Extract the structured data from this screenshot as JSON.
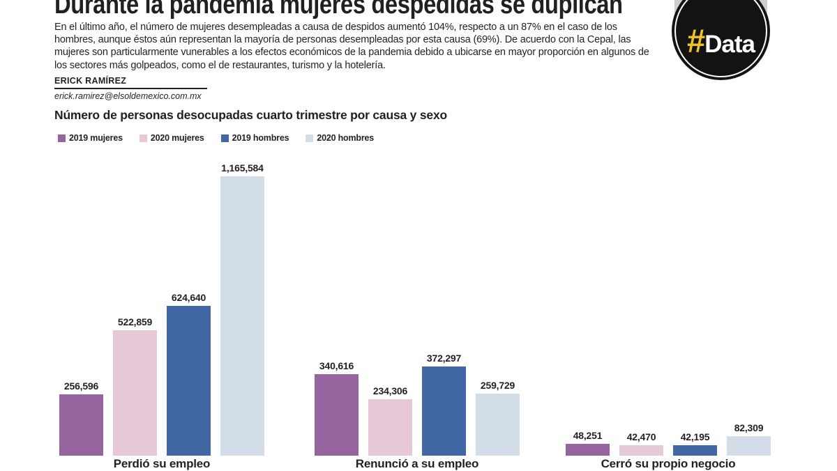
{
  "masthead": {
    "title": "Durante la pandemia mujeres despedidas se duplican",
    "intro": "En el último año, el número de mujeres desempleadas a causa de despidos aumentó 104%, respecto a un 87% en el caso de los hombres, aunque éstos aún representan la mayoría de personas desempleadas por esta causa (69%). De acuerdo con la Cepal, las mujeres son particularmente vunerables a los efectos económicos de la pandemia debido a ubicarse en mayor proporción en algunos de los sectores más golpeados, como el de restaurantes, turismo y la hotelería.",
    "author_name": "ERICK RAMÍREZ",
    "author_email": "erick.ramirez@elsoldemexico.com.mx",
    "logo_hash": "#",
    "logo_word": "Data",
    "logo_colors": {
      "hash": "#eec226",
      "word": "#ffffff",
      "circle": "#131313",
      "strip": "#c9ced3"
    }
  },
  "chart_data": {
    "type": "bar",
    "title": "Número de personas desocupadas cuarto trimestre por causa y sexo",
    "categories": [
      "Perdió su empleo",
      "Renunció a su empleo",
      "Cerró su propio negocio"
    ],
    "series": [
      {
        "name": "2019 mujeres",
        "color": "#96649e",
        "values": [
          256596,
          340616,
          48251
        ],
        "labels": [
          "256,596",
          "340,616",
          "48,251"
        ]
      },
      {
        "name": "2020 mujeres",
        "color": "#e6c8d9",
        "values": [
          522859,
          234306,
          42470
        ],
        "labels": [
          "522,859",
          "234,306",
          "42,470"
        ]
      },
      {
        "name": "2019 hombres",
        "color": "#4168a4",
        "values": [
          624640,
          372297,
          42195
        ],
        "labels": [
          "624,640",
          "372,297",
          "42,195"
        ]
      },
      {
        "name": "2020 hombres",
        "color": "#d3dee9",
        "values": [
          1165584,
          259729,
          82309
        ],
        "labels": [
          "1,165,584",
          "259,729",
          "82,309"
        ]
      }
    ],
    "ymax": 1165584,
    "grid": false,
    "legend_position": "top-left",
    "value_labels": "above-bars"
  }
}
